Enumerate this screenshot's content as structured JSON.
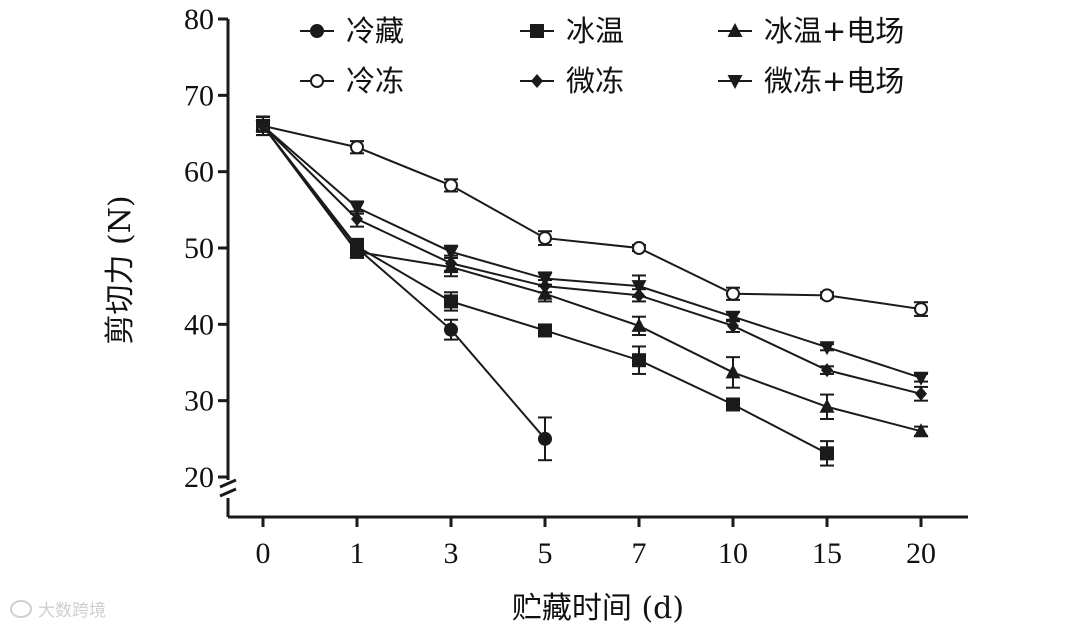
{
  "chart_data": {
    "type": "line",
    "title": "",
    "xlabel": "贮藏时间 (d)",
    "ylabel": "剪切力 (N)",
    "categories": [
      "0",
      "1",
      "3",
      "5",
      "7",
      "10",
      "15",
      "20"
    ],
    "ylim": [
      20,
      80
    ],
    "yticks": [
      20,
      30,
      40,
      50,
      60,
      70,
      80
    ],
    "y_axis_break": true,
    "grid": false,
    "legend_position": "top",
    "series": [
      {
        "name": "冷藏",
        "marker": "filled-circle",
        "values": [
          66,
          50,
          39.3,
          25,
          null,
          null,
          null,
          null
        ],
        "errors": [
          1.2,
          1.0,
          1.3,
          2.8,
          null,
          null,
          null,
          null
        ]
      },
      {
        "name": "冰温",
        "marker": "filled-square",
        "values": [
          66,
          50.2,
          43,
          39.2,
          35.3,
          29.5,
          23.1,
          null
        ],
        "errors": [
          1.2,
          1.0,
          1.2,
          0.6,
          1.8,
          0.5,
          1.6,
          null
        ]
      },
      {
        "name": "冰温+电场",
        "marker": "filled-triangle-up",
        "values": [
          66,
          49.5,
          47.5,
          44,
          39.8,
          33.7,
          29.2,
          26
        ],
        "errors": [
          1.2,
          0.8,
          1.2,
          1.0,
          1.2,
          2.0,
          1.6,
          0.6
        ]
      },
      {
        "name": "冷冻",
        "marker": "open-circle",
        "values": [
          66,
          63.2,
          58.2,
          51.3,
          50,
          44,
          43.8,
          42
        ],
        "errors": [
          1.2,
          0.8,
          0.8,
          0.9,
          0.4,
          0.8,
          0.4,
          0.9
        ]
      },
      {
        "name": "微冻",
        "marker": "filled-diamond",
        "values": [
          66,
          53.8,
          48,
          45,
          43.8,
          39.8,
          34,
          30.9
        ],
        "errors": [
          1.2,
          1.0,
          1.0,
          0.8,
          0.8,
          0.8,
          0.5,
          0.9
        ]
      },
      {
        "name": "微冻+电场",
        "marker": "filled-triangle-down",
        "values": [
          66,
          55.3,
          49.5,
          46,
          45,
          41,
          37,
          33
        ],
        "errors": [
          1.2,
          0.8,
          0.8,
          0.8,
          1.4,
          0.6,
          0.4,
          0.5
        ]
      }
    ]
  },
  "watermark": {
    "text": "大数跨境",
    "icon": "weibo-logo-icon"
  }
}
